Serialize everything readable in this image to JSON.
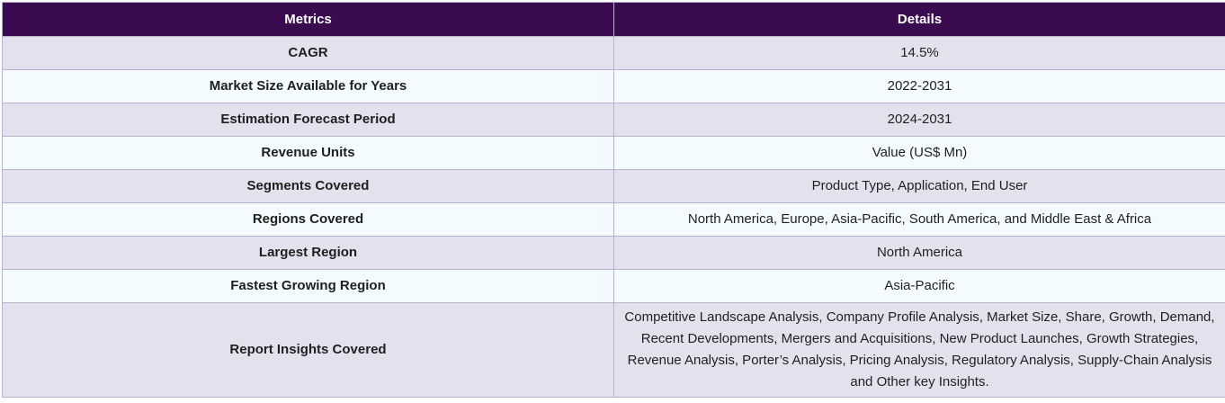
{
  "table": {
    "headers": {
      "metrics": "Metrics",
      "details": "Details"
    },
    "rows": [
      {
        "metric": "CAGR",
        "detail": "14.5%"
      },
      {
        "metric": "Market Size Available for Years",
        "detail": "2022-2031"
      },
      {
        "metric": "Estimation Forecast Period",
        "detail": "2024-2031"
      },
      {
        "metric": "Revenue Units",
        "detail": "Value (US$ Mn)"
      },
      {
        "metric": "Segments Covered",
        "detail": "Product Type, Application, End User"
      },
      {
        "metric": "Regions Covered",
        "detail": "North America, Europe, Asia-Pacific, South America, and Middle East & Africa"
      },
      {
        "metric": "Largest Region",
        "detail": "North America"
      },
      {
        "metric": "Fastest Growing Region",
        "detail": "Asia-Pacific"
      },
      {
        "metric": "Report Insights Covered",
        "detail": "Competitive Landscape Analysis, Company Profile Analysis, Market Size, Share, Growth, Demand, Recent Developments, Mergers and Acquisitions, New Product Launches, Growth Strategies, Revenue Analysis, Porter’s Analysis, Pricing Analysis, Regulatory Analysis, Supply-Chain Analysis and Other key Insights."
      }
    ]
  },
  "colors": {
    "header_bg": "#3a0b4f",
    "header_text": "#ffffff",
    "row_odd_bg": "#e4e1ee",
    "row_even_bg": "#f4fbfe",
    "border": "#b7b3cc"
  }
}
